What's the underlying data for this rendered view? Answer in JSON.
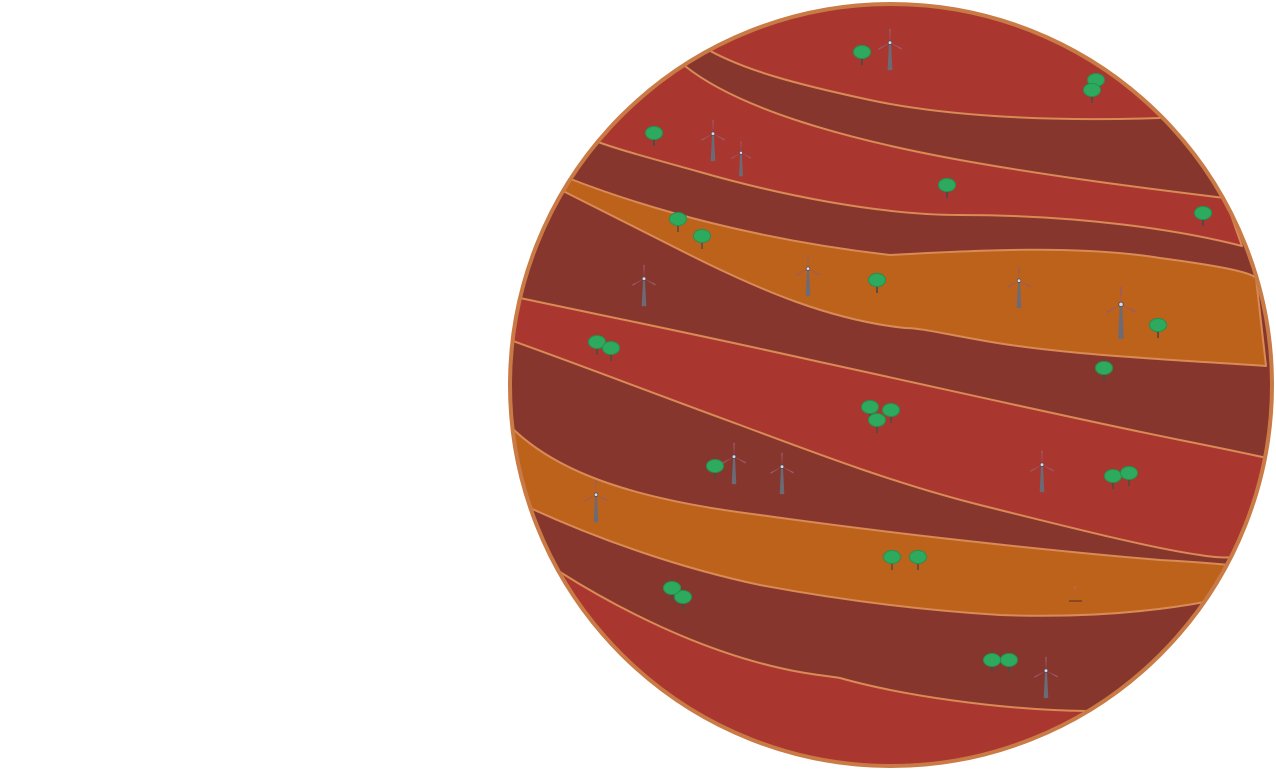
{
  "scene": {
    "subject": "planet",
    "colors": {
      "background": "#ffffff",
      "outline": "#c97a45",
      "band_dark": "#87362d",
      "band_red": "#a9372f",
      "band_orange": "#bd621b",
      "band_edge": "#d98a55",
      "tree_foliage": "#2eaa5e",
      "tree_trunk": "#4a4a4a",
      "turbine_tower": "#6b6b78",
      "turbine_blade": "#9a5a6a"
    },
    "icons": {
      "tree": "tree-icon",
      "turbine": "wind-turbine-icon"
    },
    "counts": {
      "trees": 33,
      "turbines": 13
    }
  }
}
